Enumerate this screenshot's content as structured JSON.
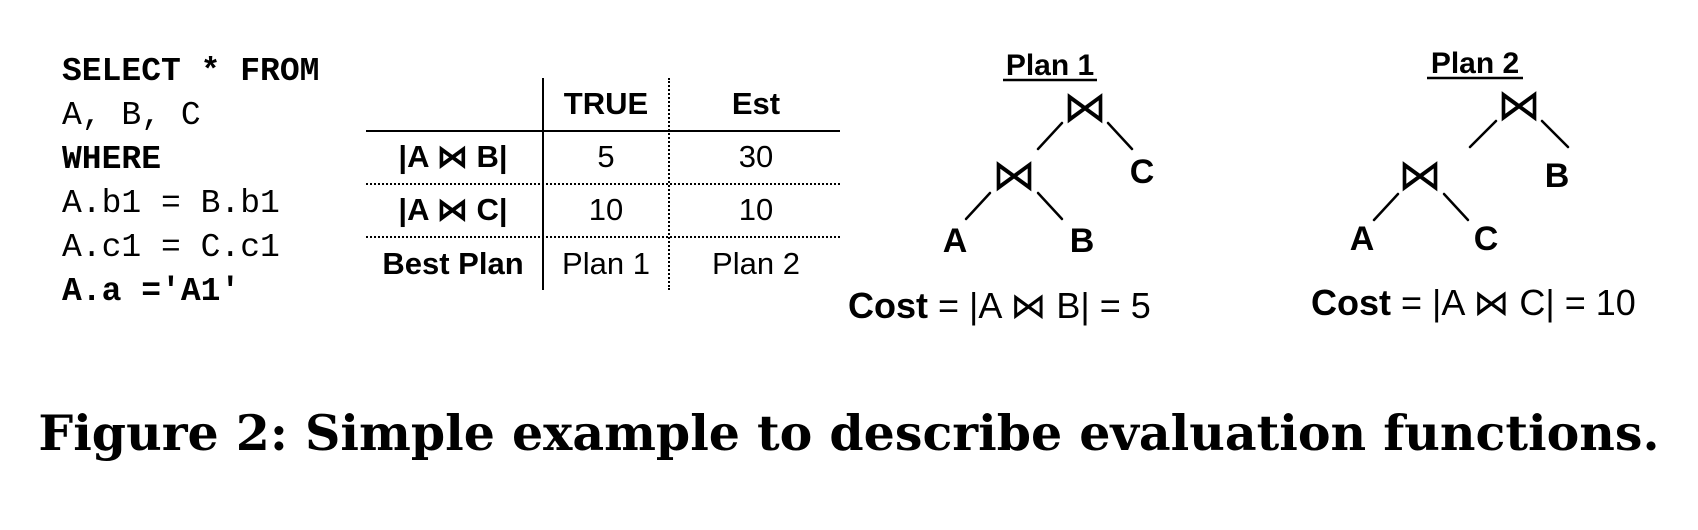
{
  "query": {
    "lines": [
      {
        "text": "SELECT * FROM",
        "bold": true
      },
      {
        "text": "A, B, C",
        "bold": false
      },
      {
        "text": "WHERE",
        "bold": true
      },
      {
        "text": "A.b1 = B.b1",
        "bold": false
      },
      {
        "text": "A.c1 = C.c1",
        "bold": false
      },
      {
        "text": "A.a ='A1'",
        "bold": true
      }
    ]
  },
  "table": {
    "headers": [
      "",
      "TRUE",
      "Est"
    ],
    "rows": [
      {
        "label": "|A ⋈ B|",
        "true": "5",
        "est": "30"
      },
      {
        "label": "|A ⋈ C|",
        "true": "10",
        "est": "10"
      },
      {
        "label": "Best Plan",
        "true": "Plan 1",
        "est": "Plan 2"
      }
    ]
  },
  "plans": [
    {
      "title": "Plan 1",
      "join_symbol": "⋈",
      "leaves": [
        "A",
        "B",
        "C"
      ],
      "cost_label": "Cost",
      "cost_expr": " = |A ⋈ B| = 5"
    },
    {
      "title": "Plan 2",
      "join_symbol": "⋈",
      "leaves": [
        "A",
        "C",
        "B"
      ],
      "cost_label": "Cost",
      "cost_expr": " = |A ⋈ C| = 10"
    }
  ],
  "caption": "Figure 2:  Simple example to describe evaluation functions."
}
